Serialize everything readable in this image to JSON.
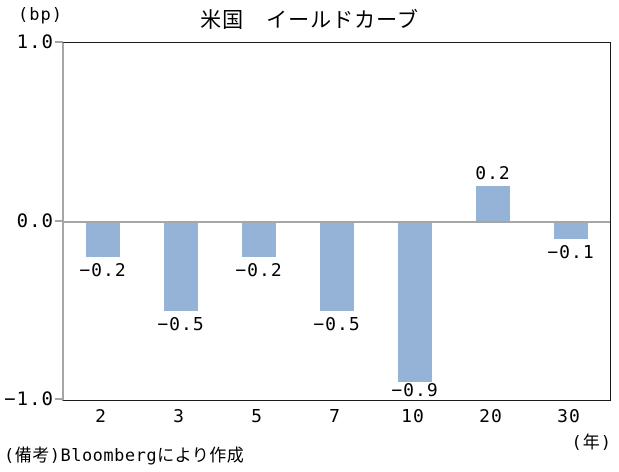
{
  "chart_data": {
    "type": "bar",
    "title": "米国　イールドカーブ",
    "y_axis_title": "(bp)",
    "x_axis_title": "(年)",
    "categories": [
      "2",
      "3",
      "5",
      "7",
      "10",
      "20",
      "30"
    ],
    "values": [
      -0.2,
      -0.5,
      -0.2,
      -0.5,
      -0.9,
      0.2,
      -0.1
    ],
    "data_labels": [
      "−0.2",
      "−0.5",
      "−0.2",
      "−0.5",
      "−0.9",
      "0.2",
      "−0.1"
    ],
    "ylim": [
      -1.0,
      1.0
    ],
    "yticks": [
      {
        "value": 1.0,
        "label": "1.0"
      },
      {
        "value": 0.0,
        "label": "0.0"
      },
      {
        "value": -1.0,
        "label": "−1.0"
      }
    ],
    "bar_color": "#95B3D7",
    "axis_color": "#A6A6A6",
    "frame_color": "#1A1A1A",
    "grid": "off",
    "zero_line": true,
    "legend": "none",
    "source_note": "(備考)Bloombergにより作成"
  }
}
